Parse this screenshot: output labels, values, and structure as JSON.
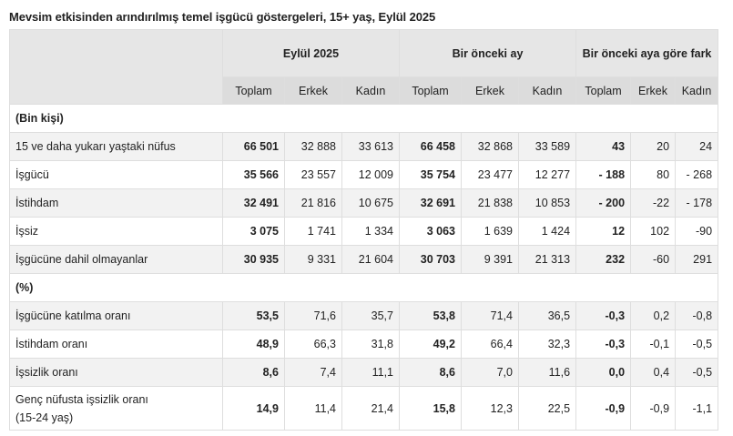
{
  "title": "Mevsim etkisinden arındırılmış temel işgücü göstergeleri, 15+ yaş, Eylül 2025",
  "header": {
    "groups": [
      "Eylül 2025",
      "Bir önceki ay",
      "Bir önceki aya göre fark"
    ],
    "subcolumns": [
      "Toplam",
      "Erkek",
      "Kadın",
      "Toplam",
      "Erkek",
      "Kadın",
      "Toplam",
      "Erkek",
      "Kadın"
    ]
  },
  "sections": [
    {
      "label": "(Bin kişi)",
      "rows": [
        {
          "label": "15 ve daha yukarı yaştaki nüfus",
          "values": [
            "66 501",
            "32 888",
            "33 613",
            "66 458",
            "32 868",
            "33 589",
            "43",
            "20",
            "24"
          ]
        },
        {
          "label": "İşgücü",
          "values": [
            "35 566",
            "23 557",
            "12 009",
            "35 754",
            "23 477",
            "12 277",
            "- 188",
            "80",
            "- 268"
          ]
        },
        {
          "label": "İstihdam",
          "values": [
            "32 491",
            "21 816",
            "10 675",
            "32 691",
            "21 838",
            "10 853",
            "- 200",
            "-22",
            "- 178"
          ]
        },
        {
          "label": "İşsiz",
          "values": [
            "3 075",
            "1 741",
            "1 334",
            "3 063",
            "1 639",
            "1 424",
            "12",
            "102",
            "-90"
          ]
        },
        {
          "label": "İşgücüne dahil olmayanlar",
          "values": [
            "30 935",
            "9 331",
            "21 604",
            "30 703",
            "9 391",
            "21 313",
            "232",
            "-60",
            "291"
          ]
        }
      ]
    },
    {
      "label": "(%)",
      "rows": [
        {
          "label": "İşgücüne katılma oranı",
          "values": [
            "53,5",
            "71,6",
            "35,7",
            "53,8",
            "71,4",
            "36,5",
            "-0,3",
            "0,2",
            "-0,8"
          ]
        },
        {
          "label": "İstihdam oranı",
          "values": [
            "48,9",
            "66,3",
            "31,8",
            "49,2",
            "66,4",
            "32,3",
            "-0,3",
            "-0,1",
            "-0,5"
          ]
        },
        {
          "label": "İşsizlik oranı",
          "values": [
            "8,6",
            "7,4",
            "11,1",
            "8,6",
            "7,0",
            "11,6",
            "0,0",
            "0,4",
            "-0,5"
          ]
        },
        {
          "label": "Genç nüfusta işsizlik oranı (15-24 yaş)",
          "values": [
            "14,9",
            "11,4",
            "21,4",
            "15,8",
            "12,3",
            "22,5",
            "-0,9",
            "-0,9",
            "-1,1"
          ]
        }
      ]
    }
  ],
  "colors": {
    "header_bg": "#e6e6e6",
    "subheader_bg": "#dcdcdc",
    "stripe_bg": "#f2f2f2",
    "border": "#dedede"
  }
}
